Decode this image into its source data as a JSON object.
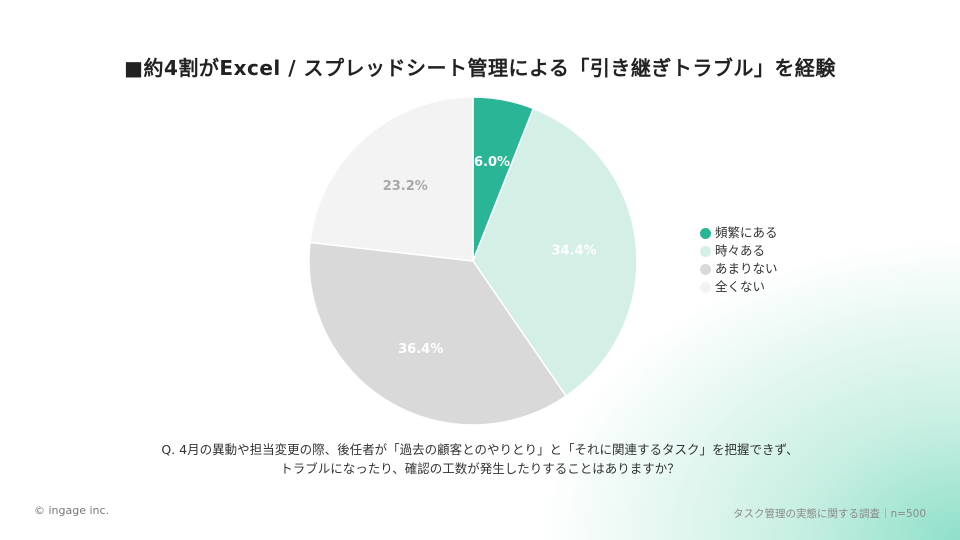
{
  "title": "■約4割がExcel / スプレッドシート管理による「引き継ぎトラブル」を経験",
  "chart_data": {
    "type": "pie",
    "categories": [
      "頻繁にある",
      "時々ある",
      "あまりない",
      "全くない"
    ],
    "values": [
      6.0,
      34.4,
      36.4,
      23.2
    ],
    "value_labels": [
      "6.0%",
      "34.4%",
      "36.4%",
      "23.2%"
    ],
    "colors": [
      "#2bb597",
      "#d3efe6",
      "#d9d9d9",
      "#f3f3f3"
    ],
    "label_colors": [
      "#ffffff",
      "#ffffff",
      "#ffffff",
      "#a8a8a8"
    ],
    "legend_position": "right",
    "start_angle": "top",
    "direction": "clockwise"
  },
  "question_lines": [
    "Q. 4月の異動や担当変更の際、後任者が「過去の顧客とのやりとり」と「それに関連するタスク」を把握できず、",
    "トラブルになったり、確認の工数が発生したりすることはありますか？"
  ],
  "copyright": "© ingage inc.",
  "source": "タスク管理の実態に関する調査｜n=500"
}
